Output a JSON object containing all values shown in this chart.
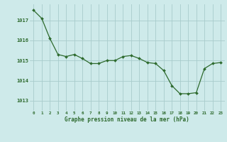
{
  "hours": [
    0,
    1,
    2,
    3,
    4,
    5,
    6,
    7,
    8,
    9,
    10,
    11,
    12,
    13,
    14,
    15,
    16,
    17,
    18,
    19,
    20,
    21,
    22,
    23
  ],
  "pressure": [
    1017.5,
    1017.1,
    1016.1,
    1015.3,
    1015.2,
    1015.3,
    1015.1,
    1014.85,
    1014.85,
    1015.0,
    1015.0,
    1015.2,
    1015.25,
    1015.1,
    1014.9,
    1014.85,
    1014.5,
    1013.75,
    1013.35,
    1013.35,
    1013.4,
    1014.6,
    1014.85,
    1014.9
  ],
  "line_color": "#2d6a2d",
  "marker_color": "#2d6a2d",
  "bg_color": "#ceeaea",
  "grid_color": "#a8cccc",
  "xlabel": "Graphe pression niveau de la mer (hPa)",
  "xlabel_color": "#2d6a2d",
  "tick_color": "#2d6a2d",
  "ylim": [
    1012.5,
    1017.8
  ],
  "xlim": [
    -0.5,
    23.5
  ],
  "xtick_labels": [
    "0",
    "1",
    "2",
    "3",
    "4",
    "5",
    "6",
    "7",
    "8",
    "9",
    "10",
    "11",
    "12",
    "13",
    "14",
    "15",
    "16",
    "17",
    "18",
    "19",
    "20",
    "21",
    "22",
    "23"
  ]
}
